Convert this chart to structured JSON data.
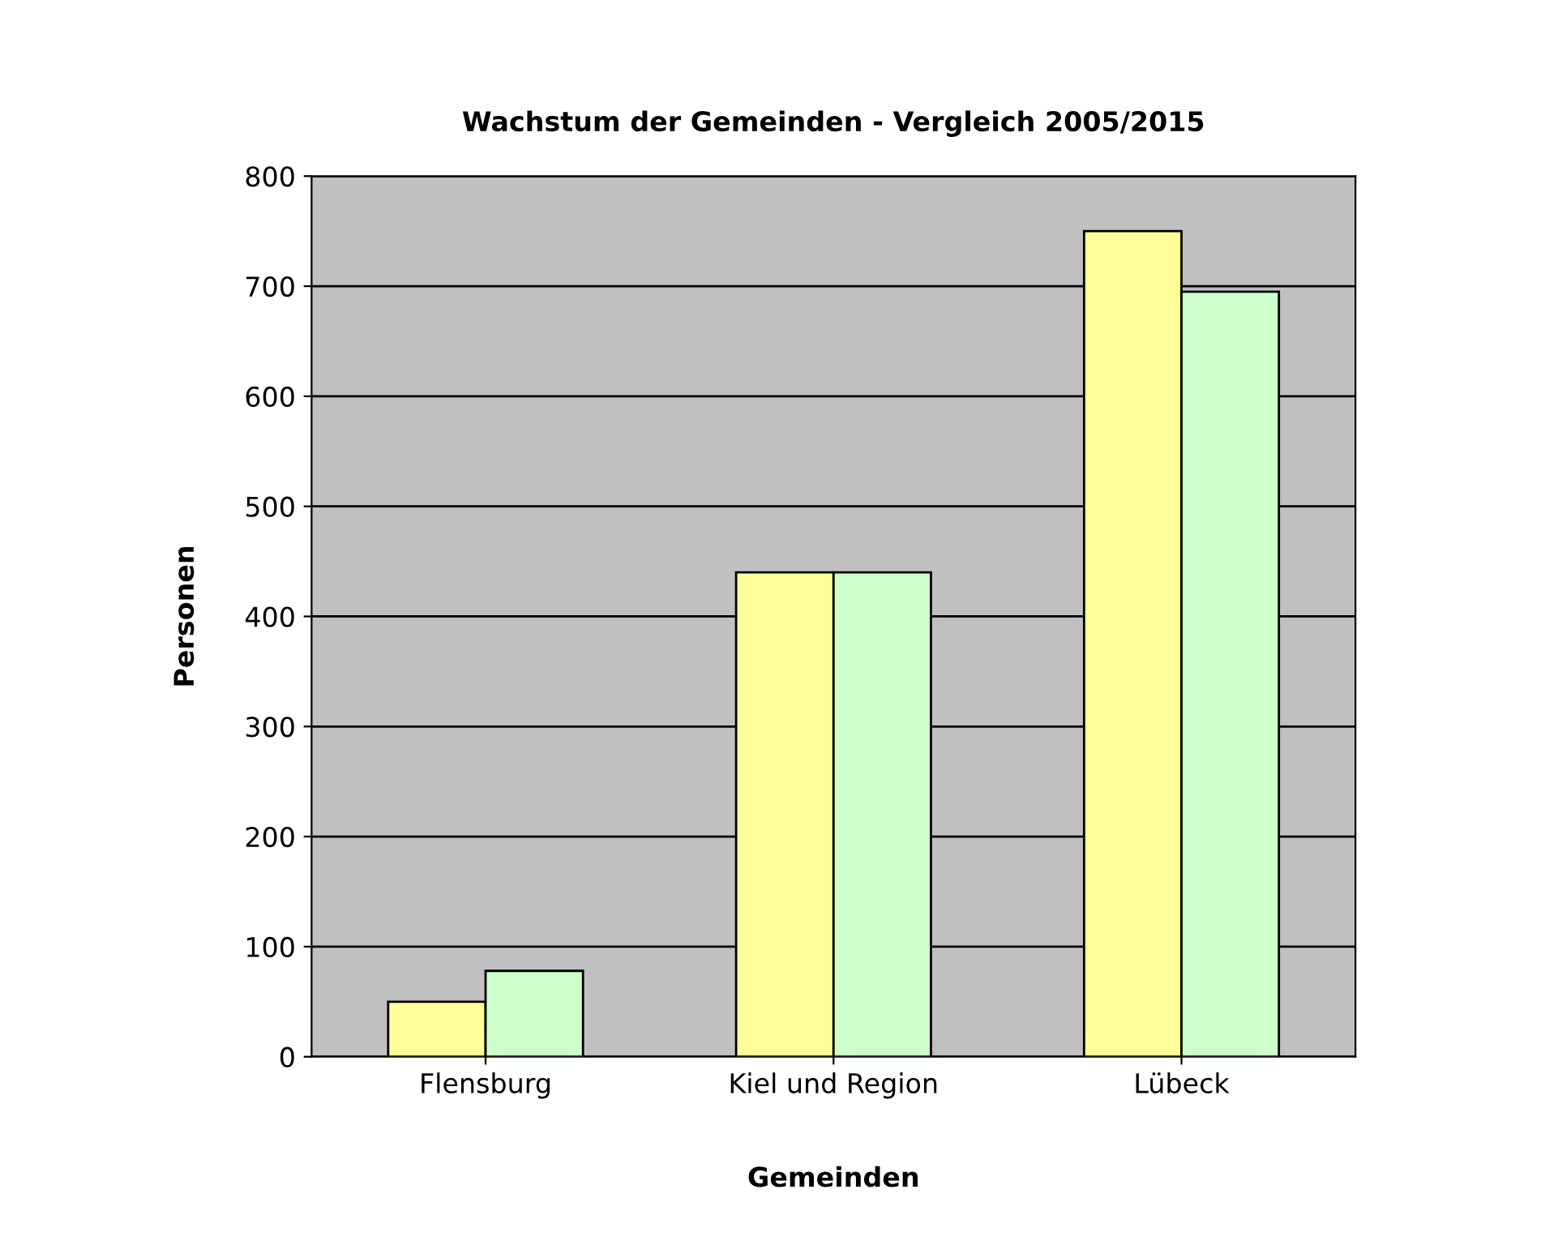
{
  "chart_data": {
    "type": "bar",
    "title": "Wachstum der Gemeinden - Vergleich 2005/2015",
    "xlabel": "Gemeinden",
    "ylabel": "Personen",
    "categories": [
      "Flensburg",
      "Kiel und Region",
      "Lübeck"
    ],
    "series": [
      {
        "color": "#ffff99",
        "values": [
          50,
          440,
          750
        ]
      },
      {
        "color": "#ccffcc",
        "values": [
          78,
          440,
          695
        ]
      }
    ],
    "ylim": [
      0,
      800
    ],
    "yticks": [
      0,
      100,
      200,
      300,
      400,
      500,
      600,
      700,
      800
    ],
    "grid": "y",
    "legend": false
  }
}
